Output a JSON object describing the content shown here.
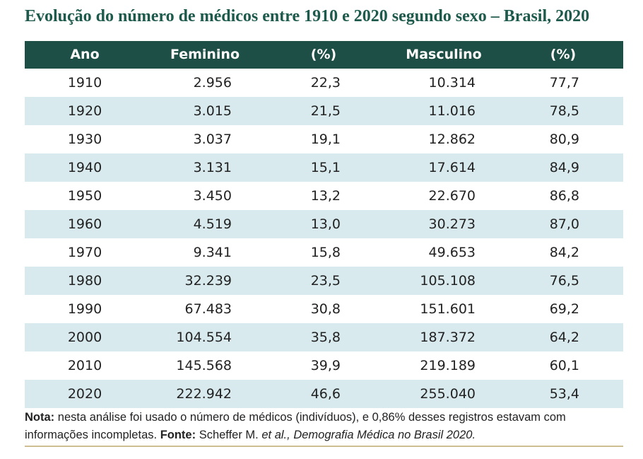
{
  "title": "Evolução do número de médicos entre 1910 e 2020 segundo sexo – Brasil, 2020",
  "table": {
    "header": [
      "Ano",
      "Feminino",
      "(%)",
      "Masculino",
      "(%)"
    ],
    "rows": [
      [
        "1910",
        "2.956",
        "22,3",
        "10.314",
        "77,7"
      ],
      [
        "1920",
        "3.015",
        "21,5",
        "11.016",
        "78,5"
      ],
      [
        "1930",
        "3.037",
        "19,1",
        "12.862",
        "80,9"
      ],
      [
        "1940",
        "3.131",
        "15,1",
        "17.614",
        "84,9"
      ],
      [
        "1950",
        "3.450",
        "13,2",
        "22.670",
        "86,8"
      ],
      [
        "1960",
        "4.519",
        "13,0",
        "30.273",
        "87,0"
      ],
      [
        "1970",
        "9.341",
        "15,8",
        "49.653",
        "84,2"
      ],
      [
        "1980",
        "32.239",
        "23,5",
        "105.108",
        "76,5"
      ],
      [
        "1990",
        "67.483",
        "30,8",
        "151.601",
        "69,2"
      ],
      [
        "2000",
        "104.554",
        "35,8",
        "187.372",
        "64,2"
      ],
      [
        "2010",
        "145.568",
        "39,9",
        "219.189",
        "60,1"
      ],
      [
        "2020",
        "222.942",
        "46,6",
        "255.040",
        "53,4"
      ]
    ]
  },
  "note": {
    "label": "Nota:",
    "text": "nesta análise foi usado o número de médicos (indivíduos), e 0,86% desses registros estavam com informações incompletas."
  },
  "source": {
    "label": "Fonte:",
    "author": "Scheffer M.",
    "etal": "et al.,",
    "work": "Demografia Médica no Brasil 2020."
  }
}
